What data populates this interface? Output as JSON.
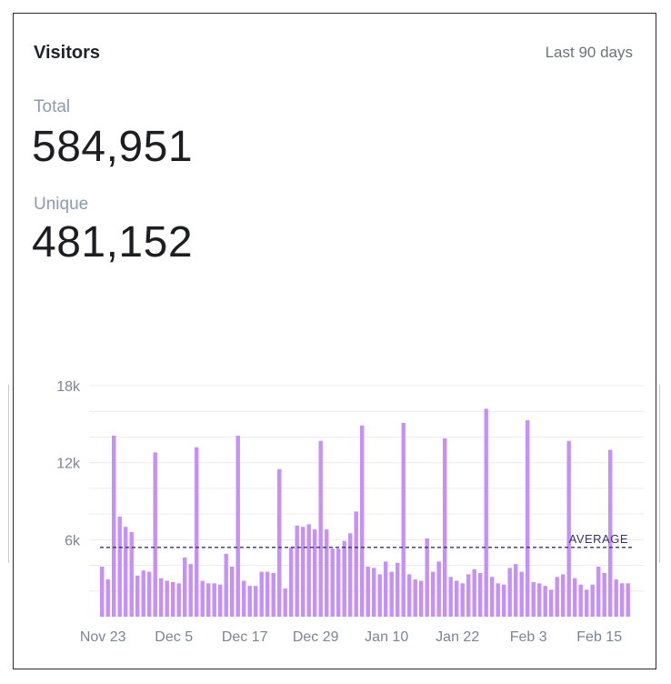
{
  "header": {
    "title": "Visitors",
    "range": "Last 90 days"
  },
  "stats": [
    {
      "label": "Total",
      "value": "584,951"
    },
    {
      "label": "Unique",
      "value": "481,152"
    }
  ],
  "colors": {
    "bar": "#c590f7",
    "average_line": "#3a2f6b",
    "grid": "#ececec"
  },
  "chart_data": {
    "type": "bar",
    "ylim": [
      0,
      18000
    ],
    "y_ticks": [
      {
        "value": 18000,
        "label": "18k"
      },
      {
        "value": 12000,
        "label": "12k"
      },
      {
        "value": 6000,
        "label": "6k"
      }
    ],
    "x_tick_labels": [
      {
        "index": 0,
        "label": "Nov 23"
      },
      {
        "index": 12,
        "label": "Dec 5"
      },
      {
        "index": 24,
        "label": "Dec 17"
      },
      {
        "index": 36,
        "label": "Dec 29"
      },
      {
        "index": 48,
        "label": "Jan 10"
      },
      {
        "index": 60,
        "label": "Jan 22"
      },
      {
        "index": 72,
        "label": "Feb 3"
      },
      {
        "index": 84,
        "label": "Feb 15"
      }
    ],
    "average": {
      "label": "AVERAGE",
      "value": 5400
    },
    "values": [
      3900,
      2900,
      14100,
      7800,
      7000,
      6600,
      3200,
      3600,
      3500,
      12800,
      3000,
      2800,
      2700,
      2600,
      4600,
      4100,
      13200,
      2800,
      2600,
      2600,
      2500,
      4900,
      3900,
      14100,
      2800,
      2400,
      2400,
      3500,
      3500,
      3400,
      11500,
      2200,
      5400,
      7100,
      7000,
      7200,
      6800,
      13700,
      6800,
      5300,
      5300,
      5900,
      6500,
      8200,
      14900,
      3900,
      3800,
      3300,
      4300,
      3500,
      4200,
      15100,
      3300,
      2900,
      2800,
      6100,
      3500,
      4300,
      13900,
      3100,
      2800,
      2600,
      3300,
      3700,
      3400,
      16200,
      3100,
      2600,
      2500,
      3800,
      4100,
      3500,
      15300,
      2700,
      2600,
      2400,
      2100,
      3100,
      3300,
      13700,
      3000,
      2500,
      2100,
      2500,
      3900,
      3400,
      13000,
      2900,
      2600,
      2600
    ]
  }
}
